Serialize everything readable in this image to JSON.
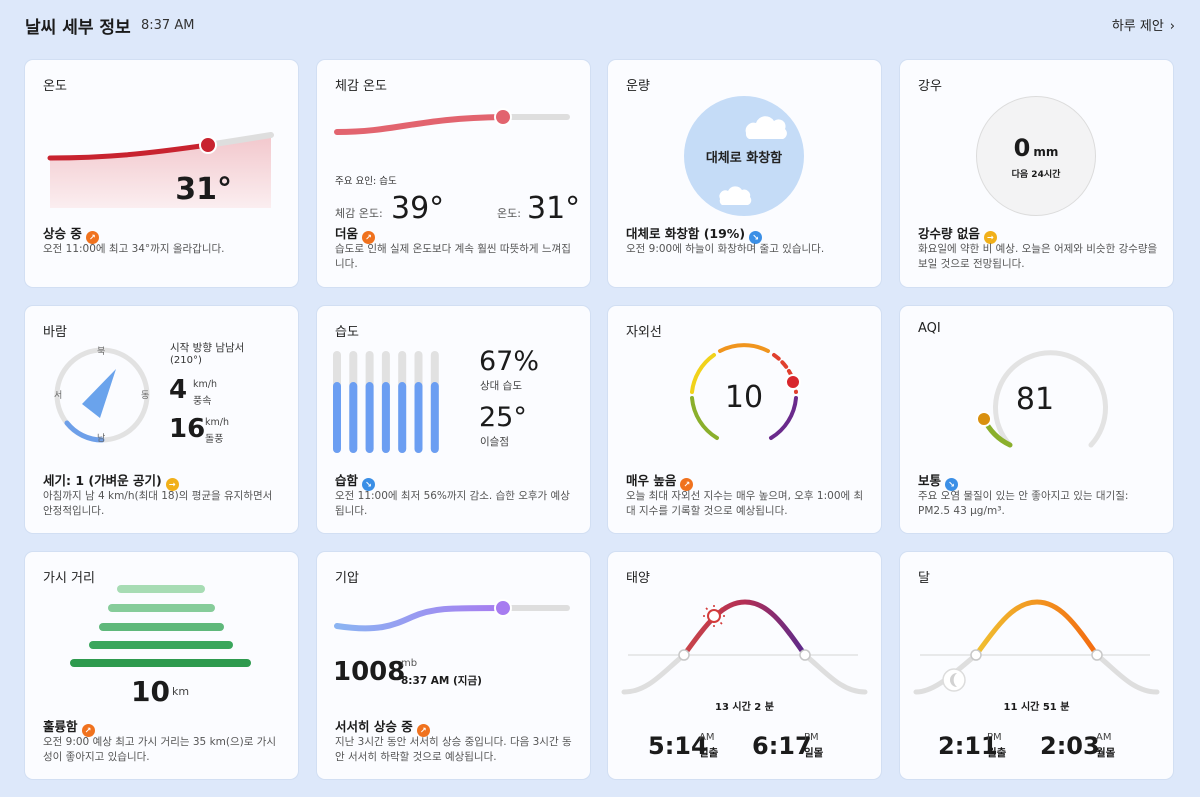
{
  "header": {
    "title": "날씨 세부 정보",
    "time": "8:37 AM",
    "suggest_label": "하루 제안"
  },
  "temperature": {
    "title": "온도",
    "value": "31°",
    "status": "상승 중",
    "desc": "오전 11:00에 최고 34°까지 올라갑니다."
  },
  "feels_like": {
    "title": "체감 온도",
    "factor": "주요 요인: 습도",
    "feels_label": "체감 온도:",
    "feels_value": "39°",
    "temp_label": "온도:",
    "temp_value": "31°",
    "status": "더움",
    "desc": "습도로 인해 실제 온도보다 계속 훨씬 따뜻하게 느껴집니다."
  },
  "cloud": {
    "title": "운량",
    "circle_text": "대체로 화창함",
    "status": "대체로 화창함 (19%)",
    "desc": "오전 9:00에 하늘이 화창하며 줄고 있습니다."
  },
  "rain": {
    "title": "강우",
    "amount": "0",
    "unit": "mm",
    "period": "다음 24시간",
    "status": "강수량 없음",
    "desc": "화요일에 약한 비 예상. 오늘은 어제와 비슷한 강수량을 보일 것으로 전망됩니다."
  },
  "wind": {
    "title": "바람",
    "dir_text": "시작 방향 남남서",
    "deg": "(210°)",
    "n": "북",
    "e": "동",
    "s": "남",
    "w": "서",
    "speed": "4",
    "speed_unit": "km/h",
    "speed_label": "풍속",
    "gust": "16",
    "gust_unit": "km/h",
    "gust_label": "돌풍",
    "status": "세기: 1 (가벼운 공기)",
    "desc": "아침까지 남 4 km/h(최대 18)의 평균을 유지하면서 안정적입니다."
  },
  "humidity": {
    "title": "습도",
    "value": "67%",
    "value_label": "상대 습도",
    "dew": "25°",
    "dew_label": "이슬점",
    "level": 0.67,
    "status": "습함",
    "desc": "오전 11:00에 최저 56%까지 감소. 습한 오후가 예상됩니다."
  },
  "uv": {
    "title": "자외선",
    "value": "10",
    "status": "매우 높음",
    "desc": "오늘 최대 자외선 지수는 매우 높으며, 오후 1:00에 최대 지수를 기록할 것으로 예상됩니다."
  },
  "aqi": {
    "title": "AQI",
    "value": "81",
    "status": "보통",
    "desc": "주요 오염 물질이 있는 안 좋아지고 있는 대기질: PM2.5 43 µg/m³."
  },
  "visibility": {
    "title": "가시 거리",
    "value": "10",
    "unit": "km",
    "status": "훌륭함",
    "desc": "오전 9:00 예상 최고 가시 거리는 35 km(으)로 가시성이 좋아지고 있습니다."
  },
  "pressure": {
    "title": "기압",
    "value": "1008",
    "unit": "mb",
    "time": "8:37 AM (지금)",
    "status": "서서히 상승 중",
    "desc": "지난 3시간 동안 서서히 상승 중입니다. 다음 3시간 동안 서서히 하락할 것으로 예상됩니다."
  },
  "sun": {
    "title": "태양",
    "duration": "13 시간 2 분",
    "rise_time": "5:14",
    "rise_ampm": "AM",
    "rise_label": "일출",
    "set_time": "6:17",
    "set_ampm": "PM",
    "set_label": "일몰"
  },
  "moon": {
    "title": "달",
    "duration": "11 시간 51 분",
    "rise_time": "2:11",
    "rise_ampm": "PM",
    "rise_label": "월출",
    "set_time": "2:03",
    "set_ampm": "AM",
    "set_label": "월몰"
  },
  "colors": {
    "up": "#f0721e",
    "down": "#3b8fe6",
    "side": "#f1b01a",
    "temp_red": "#c8232f",
    "humidity_blue": "#6b9ef2",
    "pressure_purple": "#a77cf0",
    "visibility_green": "#2e9a4e"
  }
}
